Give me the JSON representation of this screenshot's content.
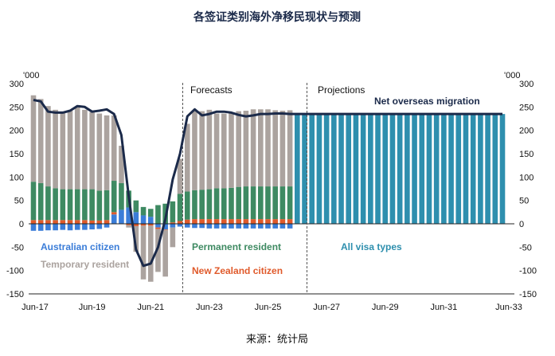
{
  "chart_data": {
    "type": "bar",
    "title": "各签证类别海外净移民现状与预测",
    "source": "来源：统计局",
    "unit_left": "'000",
    "unit_right": "'000",
    "ylim": [
      -150,
      300
    ],
    "yticks": [
      -150,
      -100,
      -50,
      0,
      50,
      100,
      150,
      200,
      250,
      300
    ],
    "x_tick_labels": [
      "Jun-17",
      "Jun-19",
      "Jun-21",
      "Jun-23",
      "Jun-25",
      "Jun-27",
      "Jun-29",
      "Jun-31",
      "Jun-33"
    ],
    "section_labels": [
      "Forecasts",
      "Projections"
    ],
    "legend_labels": {
      "australian": "Australian citizen",
      "temporary": "Temporary resident",
      "permanent": "Permanent resident",
      "nz": "New Zealand citizen",
      "all": "All visa types"
    },
    "line_label": "Net overseas migration",
    "colors": {
      "australian": "#3b7dd8",
      "temporary": "#aba39f",
      "permanent": "#3e8a62",
      "nz": "#e05a2b",
      "all": "#2e8fae",
      "line": "#1b2a4a"
    },
    "stacked_quarters": [
      "Jun-17",
      "Sep-17",
      "Dec-17",
      "Mar-18",
      "Jun-18",
      "Sep-18",
      "Dec-18",
      "Mar-19",
      "Jun-19",
      "Sep-19",
      "Dec-19",
      "Mar-20",
      "Jun-20",
      "Sep-20",
      "Dec-20",
      "Mar-21",
      "Jun-21",
      "Sep-21",
      "Dec-21",
      "Mar-22",
      "Jun-22",
      "Sep-22",
      "Dec-22",
      "Mar-23",
      "Jun-23",
      "Sep-23",
      "Dec-23",
      "Mar-24",
      "Jun-24",
      "Sep-24",
      "Dec-24",
      "Mar-25",
      "Jun-25",
      "Sep-25",
      "Dec-25",
      "Mar-26"
    ],
    "series": [
      {
        "name": "Australian citizen",
        "values": [
          -15,
          -15,
          -14,
          -14,
          -13,
          -14,
          -13,
          -13,
          -12,
          -11,
          -8,
          20,
          30,
          35,
          25,
          18,
          15,
          -8,
          -12,
          -8,
          -6,
          -8,
          -9,
          -9,
          -10,
          -10,
          -10,
          -10,
          -10,
          -10,
          -10,
          -10,
          -10,
          -10,
          -10,
          -10
        ]
      },
      {
        "name": "New Zealand citizen",
        "values": [
          8,
          8,
          8,
          8,
          8,
          8,
          8,
          8,
          7,
          7,
          8,
          5,
          0,
          -3,
          -5,
          -4,
          -4,
          -3,
          -1,
          3,
          6,
          9,
          10,
          10,
          10,
          10,
          10,
          10,
          10,
          10,
          10,
          10,
          10,
          10,
          10,
          10
        ]
      },
      {
        "name": "Permanent resident",
        "values": [
          82,
          79,
          72,
          68,
          66,
          66,
          66,
          66,
          67,
          64,
          64,
          67,
          57,
          36,
          25,
          18,
          17,
          40,
          43,
          45,
          58,
          60,
          62,
          63,
          64,
          66,
          66,
          67,
          69,
          70,
          70,
          70,
          70,
          70,
          70,
          70
        ]
      },
      {
        "name": "Temporary resident",
        "values": [
          185,
          180,
          172,
          168,
          165,
          168,
          175,
          170,
          165,
          165,
          160,
          140,
          80,
          -5,
          -55,
          -115,
          -120,
          -92,
          -100,
          -42,
          75,
          145,
          170,
          168,
          170,
          160,
          160,
          160,
          162,
          162,
          165,
          165,
          165,
          163,
          162,
          163
        ]
      }
    ],
    "projection_quarters": [
      "Jun-26",
      "Sep-26",
      "Dec-26",
      "Mar-27",
      "Jun-27",
      "Sep-27",
      "Dec-27",
      "Mar-28",
      "Jun-28",
      "Sep-28",
      "Dec-28",
      "Mar-29",
      "Jun-29",
      "Sep-29",
      "Dec-29",
      "Mar-30",
      "Jun-30",
      "Sep-30",
      "Dec-30",
      "Mar-31",
      "Jun-31",
      "Sep-31",
      "Dec-31",
      "Mar-32",
      "Jun-32",
      "Sep-32",
      "Dec-32",
      "Mar-33",
      "Jun-33"
    ],
    "projection_values": [
      235,
      235,
      235,
      235,
      235,
      235,
      235,
      235,
      235,
      235,
      235,
      235,
      235,
      235,
      235,
      235,
      235,
      235,
      235,
      235,
      235,
      235,
      235,
      235,
      235,
      235,
      235,
      235,
      235
    ],
    "net_overseas_migration": [
      265,
      262,
      240,
      238,
      238,
      242,
      252,
      250,
      240,
      242,
      245,
      235,
      190,
      60,
      -55,
      -90,
      -85,
      -50,
      10,
      95,
      150,
      230,
      245,
      232,
      235,
      240,
      240,
      238,
      233,
      230,
      232,
      235,
      235,
      236,
      236,
      235,
      235,
      235,
      235,
      235,
      235,
      235,
      235,
      235,
      235,
      235,
      235,
      235,
      235,
      235,
      235,
      235,
      235,
      235,
      235,
      235,
      235,
      235,
      235,
      235,
      235,
      235,
      235,
      235,
      235
    ]
  }
}
